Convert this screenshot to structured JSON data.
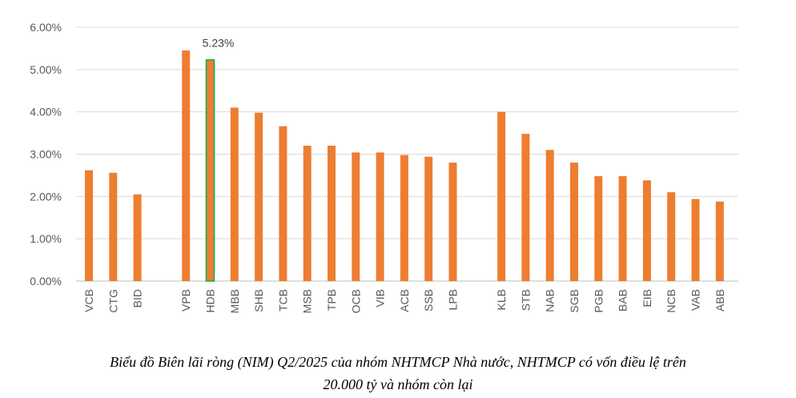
{
  "chart_data": {
    "type": "bar",
    "categories": [
      "VCB",
      "CTG",
      "BID",
      "",
      "VPB",
      "HDB",
      "MBB",
      "SHB",
      "TCB",
      "MSB",
      "TPB",
      "OCB",
      "VIB",
      "ACB",
      "SSB",
      "LPB",
      "",
      "KLB",
      "STB",
      "NAB",
      "SGB",
      "PGB",
      "BAB",
      "EIB",
      "NCB",
      "VAB",
      "ABB"
    ],
    "values": [
      2.62,
      2.56,
      2.05,
      null,
      5.45,
      5.23,
      4.1,
      3.98,
      3.66,
      3.2,
      3.2,
      3.04,
      3.04,
      2.98,
      2.94,
      2.8,
      null,
      4.0,
      3.48,
      3.1,
      2.8,
      2.48,
      2.48,
      2.38,
      2.1,
      1.94,
      1.88
    ],
    "highlight_index": 5,
    "highlight_label": "5.23%",
    "ylim": [
      0,
      6
    ],
    "yticks": [
      "0.00%",
      "1.00%",
      "2.00%",
      "3.00%",
      "4.00%",
      "5.00%",
      "6.00%"
    ],
    "grid": true,
    "bar_color": "#ED7D31",
    "highlight_border_color": "#00B050",
    "gridline_color": "#D9D9D9"
  },
  "caption": {
    "line1": "Biểu đồ Biên lãi ròng (NIM) Q2/2025 của nhóm NHTMCP Nhà nước, NHTMCP có vốn điều lệ trên",
    "line2": "20.000 tỷ và nhóm còn lại"
  }
}
